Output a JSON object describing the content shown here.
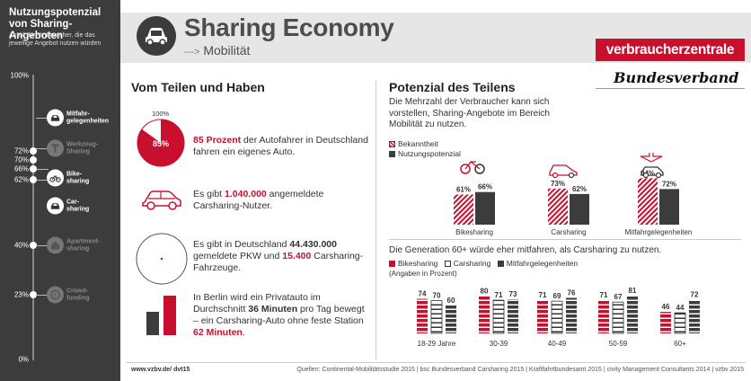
{
  "sidebar": {
    "title_line1": "Nutzungspotenzial",
    "title_line2": "von Sharing-Angeboten",
    "subtitle": "Anteil der Verbraucher, die das jeweilige Angebot nutzen würden",
    "scale_top": "100%",
    "scale_bottom": "0%",
    "items": [
      {
        "value": 72,
        "label": "72%",
        "name1": "Mitfahr-",
        "name2": "gelegenheiten",
        "active": true,
        "icon": "car-icon"
      },
      {
        "value": 70,
        "label": "70%",
        "name1": "Werkzeug-",
        "name2": "Sharing",
        "active": false,
        "icon": "hammer-icon"
      },
      {
        "value": 66,
        "label": "66%",
        "name1": "Bike-",
        "name2": "sharing",
        "active": true,
        "icon": "bike-icon"
      },
      {
        "value": 62,
        "label": "62%",
        "name1": "Car-",
        "name2": "sharing",
        "active": true,
        "icon": "car-icon"
      },
      {
        "value": 40,
        "label": "40%",
        "name1": "Apartment-",
        "name2": "sharing",
        "active": false,
        "icon": "house-icon"
      },
      {
        "value": 23,
        "label": "23%",
        "name1": "Crowd-",
        "name2": "funding",
        "active": false,
        "icon": "coin-icon"
      }
    ]
  },
  "header": {
    "title": "Sharing Economy",
    "arrow": "--->",
    "subtitle": "Mobilität",
    "logo_text": "verbraucherzentrale",
    "logo_sub": "Bundesverband"
  },
  "left": {
    "title": "Vom Teilen und Haben",
    "pie_top_label": "100%",
    "pie_value_label": "85%",
    "pie_value": 85,
    "p1_red": "85 Prozent",
    "p1_rest": "der Autofahrer in Deutschland fahren ein eigenes Auto.",
    "p2_pre": "Es gibt",
    "p2_num": "1.040.000",
    "p2_post": "angemeldete Carsharing-Nutzer.",
    "p3_pre": "Es gibt in Deutschland",
    "p3_num1": "44.430.000",
    "p3_mid": "gemeldete PKW und",
    "p3_num2": "15.400",
    "p3_post": "Carsharing-Fahrzeuge.",
    "p4_pre": "In Berlin wird ein Privatauto im Durchschnitt",
    "p4_num1": "36 Minuten",
    "p4_mid": "pro Tag bewegt – ein Carsharing-Auto ohne feste Station",
    "p4_num2": "62 Minuten",
    "p4_end": "."
  },
  "right": {
    "title": "Potenzial des Teilens",
    "desc": "Die Mehrzahl der Verbraucher kann sich vorstellen, Sharing-Angebote im Bereich Mobilität zu nutzen.",
    "legend_known": "Bekanntheit",
    "legend_potential": "Nutzungspotenzial",
    "gen_title": "Die Generation 60+ würde eher mitfahren, als Carsharing zu nutzen.",
    "legend_bike": "Bikesharing",
    "legend_car": "Carsharing",
    "legend_ride": "Mitfahrgelegenheiten",
    "gen_note": "(Angaben in Prozent)"
  },
  "chart_data": [
    {
      "type": "bar",
      "categories": [
        "Bikesharing",
        "Carsharing",
        "Mitfahrgelegenheiten"
      ],
      "series": [
        {
          "name": "Bekanntheit",
          "values": [
            61,
            73,
            94
          ],
          "labels": [
            "61%",
            "73%",
            "94%"
          ]
        },
        {
          "name": "Nutzungspotenzial",
          "values": [
            66,
            62,
            72
          ],
          "labels": [
            "66%",
            "62%",
            "72%"
          ]
        }
      ],
      "ylim": [
        0,
        100
      ]
    },
    {
      "type": "bar",
      "title": "Die Generation 60+ würde eher mitfahren, als Carsharing zu nutzen.",
      "categories": [
        "18-29 Jahre",
        "30-39",
        "40-49",
        "50-59",
        "60+"
      ],
      "series": [
        {
          "name": "Bikesharing",
          "values": [
            74,
            80,
            71,
            71,
            46
          ]
        },
        {
          "name": "Carsharing",
          "values": [
            70,
            71,
            69,
            67,
            44
          ]
        },
        {
          "name": "Mitfahrgelegenheiten",
          "values": [
            60,
            73,
            76,
            81,
            72
          ]
        }
      ],
      "ylim": [
        0,
        100
      ]
    }
  ],
  "colors": {
    "red": "#c8102e",
    "dark": "#3c3c3c",
    "grey": "#e6e6e6"
  },
  "footer": {
    "url": "www.vzbv.de/ dvt15",
    "sources": "Quellen: Continental-Mobilitätsstudie 2015 | bsc Bundesverband Carsharing 2015 | Kraftfahrtbundesamt 2015 | civity Management Consultants 2014 | vzbv 2015"
  }
}
